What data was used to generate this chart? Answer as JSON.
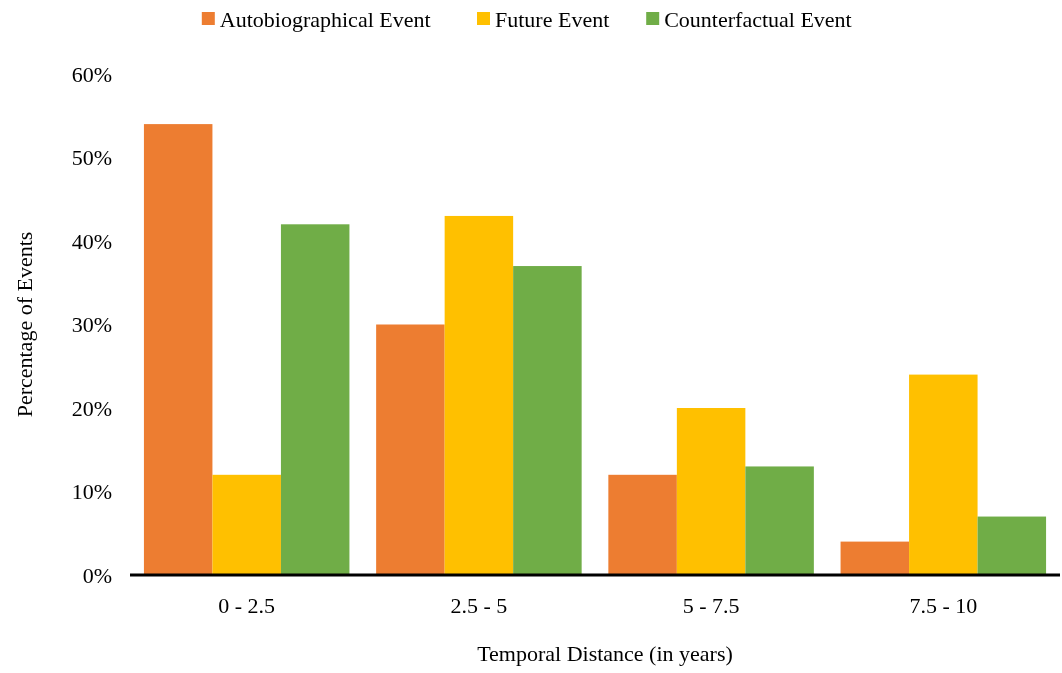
{
  "chart_data": {
    "type": "bar",
    "xlabel": "Temporal Distance (in years)",
    "ylabel": "Percentage of Events",
    "categories": [
      "0 - 2.5",
      "2.5 - 5",
      "5 - 7.5",
      "7.5 - 10"
    ],
    "series": [
      {
        "name": "Autobiographical Event",
        "color": "#ed7d31",
        "values": [
          54,
          30,
          12,
          4
        ]
      },
      {
        "name": "Future Event",
        "color": "#ffc000",
        "values": [
          12,
          43,
          20,
          24
        ]
      },
      {
        "name": "Counterfactual Event",
        "color": "#70ad47",
        "values": [
          42,
          37,
          13,
          7
        ]
      }
    ],
    "ylim": [
      0,
      60
    ],
    "yticks": [
      {
        "value": 0,
        "label": "0%"
      },
      {
        "value": 10,
        "label": "10%"
      },
      {
        "value": 20,
        "label": "20%"
      },
      {
        "value": 30,
        "label": "30%"
      },
      {
        "value": 40,
        "label": "40%"
      },
      {
        "value": 50,
        "label": "50%"
      },
      {
        "value": 60,
        "label": "60%"
      }
    ],
    "legend": "top"
  }
}
